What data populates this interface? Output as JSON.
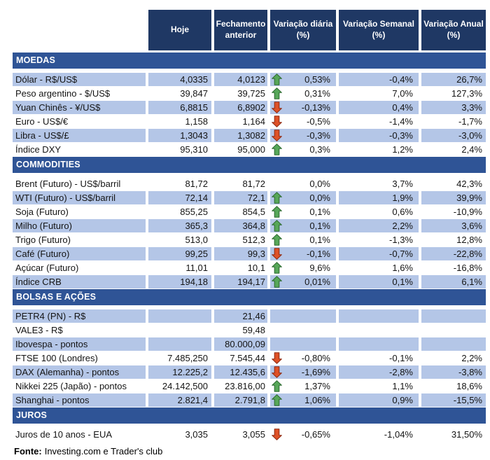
{
  "chart_data": {
    "type": "table",
    "columns": [
      "Hoje",
      "Fechamento anterior",
      "Variação diária (%)",
      "Variação Semanal (%)",
      "Variação Anual (%)"
    ],
    "sections": [
      {
        "title": "MOEDAS",
        "rows": [
          {
            "label": "Dólar - R$/US$",
            "hoje": "4,0335",
            "fechamento": "4,0123",
            "arrow": "up",
            "diaria": "0,53%",
            "semanal": "-0,4%",
            "anual": "26,7%"
          },
          {
            "label": "Peso argentino - $/US$",
            "hoje": "39,847",
            "fechamento": "39,725",
            "arrow": "up",
            "diaria": "0,31%",
            "semanal": "7,0%",
            "anual": "127,3%"
          },
          {
            "label": "Yuan Chinês - ¥/US$",
            "hoje": "6,8815",
            "fechamento": "6,8902",
            "arrow": "down",
            "diaria": "-0,13%",
            "semanal": "0,4%",
            "anual": "3,3%"
          },
          {
            "label": "Euro - US$/€",
            "hoje": "1,158",
            "fechamento": "1,164",
            "arrow": "down",
            "diaria": "-0,5%",
            "semanal": "-1,4%",
            "anual": "-1,7%"
          },
          {
            "label": "Libra - US$/£",
            "hoje": "1,3043",
            "fechamento": "1,3082",
            "arrow": "down",
            "diaria": "-0,3%",
            "semanal": "-0,3%",
            "anual": "-3,0%"
          },
          {
            "label": "Índice DXY",
            "hoje": "95,310",
            "fechamento": "95,000",
            "arrow": "up",
            "diaria": "0,3%",
            "semanal": "1,2%",
            "anual": "2,4%"
          }
        ]
      },
      {
        "title": "COMMODITIES",
        "rows": [
          {
            "label": "Brent (Futuro) - US$/barril",
            "hoje": "81,72",
            "fechamento": "81,72",
            "arrow": "",
            "diaria": "0,0%",
            "semanal": "3,7%",
            "anual": "42,3%"
          },
          {
            "label": "WTI (Futuro) - US$/barril",
            "hoje": "72,14",
            "fechamento": "72,1",
            "arrow": "up",
            "diaria": "0,0%",
            "semanal": "1,9%",
            "anual": "39,9%"
          },
          {
            "label": "Soja (Futuro)",
            "hoje": "855,25",
            "fechamento": "854,5",
            "arrow": "up",
            "diaria": "0,1%",
            "semanal": "0,6%",
            "anual": "-10,9%"
          },
          {
            "label": "Milho (Futuro)",
            "hoje": "365,3",
            "fechamento": "364,8",
            "arrow": "up",
            "diaria": "0,1%",
            "semanal": "2,2%",
            "anual": "3,6%"
          },
          {
            "label": "Trigo (Futuro)",
            "hoje": "513,0",
            "fechamento": "512,3",
            "arrow": "up",
            "diaria": "0,1%",
            "semanal": "-1,3%",
            "anual": "12,8%"
          },
          {
            "label": "Café (Futuro)",
            "hoje": "99,25",
            "fechamento": "99,3",
            "arrow": "down",
            "diaria": "-0,1%",
            "semanal": "-0,7%",
            "anual": "-22,8%"
          },
          {
            "label": "Açúcar (Futuro)",
            "hoje": "11,01",
            "fechamento": "10,1",
            "arrow": "up",
            "diaria": "9,6%",
            "semanal": "1,6%",
            "anual": "-16,8%"
          },
          {
            "label": "Índice CRB",
            "hoje": "194,18",
            "fechamento": "194,17",
            "arrow": "up",
            "diaria": "0,01%",
            "semanal": "0,1%",
            "anual": "6,1%"
          }
        ]
      },
      {
        "title": "BOLSAS E AÇÕES",
        "rows": [
          {
            "label": "PETR4 (PN) - R$",
            "hoje": "",
            "fechamento": "21,46",
            "arrow": "",
            "diaria": "",
            "semanal": "",
            "anual": ""
          },
          {
            "label": "VALE3 - R$",
            "hoje": "",
            "fechamento": "59,48",
            "arrow": "",
            "diaria": "",
            "semanal": "",
            "anual": ""
          },
          {
            "label": "Ibovespa - pontos",
            "hoje": "",
            "fechamento": "80.000,09",
            "arrow": "",
            "diaria": "",
            "semanal": "",
            "anual": ""
          },
          {
            "label": "FTSE 100 (Londres)",
            "hoje": "7.485,250",
            "fechamento": "7.545,44",
            "arrow": "down",
            "diaria": "-0,80%",
            "semanal": "-0,1%",
            "anual": "2,2%"
          },
          {
            "label": "DAX (Alemanha) - pontos",
            "hoje": "12.225,2",
            "fechamento": "12.435,6",
            "arrow": "down",
            "diaria": "-1,69%",
            "semanal": "-2,8%",
            "anual": "-3,8%"
          },
          {
            "label": "Nikkei 225 (Japão) - pontos",
            "hoje": "24.142,500",
            "fechamento": "23.816,00",
            "arrow": "up",
            "diaria": "1,37%",
            "semanal": "1,1%",
            "anual": "18,6%"
          },
          {
            "label": "Shanghai - pontos",
            "hoje": "2.821,4",
            "fechamento": "2.791,8",
            "arrow": "up",
            "diaria": "1,06%",
            "semanal": "0,9%",
            "anual": "-15,5%"
          }
        ]
      },
      {
        "title": "JUROS",
        "rows": [
          {
            "label": "Juros de 10 anos - EUA",
            "hoje": "3,035",
            "fechamento": "3,055",
            "arrow": "down",
            "diaria": "-0,65%",
            "semanal": "-1,04%",
            "anual": "31,50%"
          }
        ]
      }
    ]
  },
  "footer": {
    "fonte_label": "Fonte:",
    "fonte_text": "Investing.com e Trader's club"
  },
  "colors": {
    "header_bg": "#1F3864",
    "section_bg": "#2F5496",
    "row_shaded": "#B4C6E7",
    "up_arrow_fill": "#57A759",
    "up_arrow_border": "#2E6B31",
    "down_arrow_fill": "#DE5127",
    "down_arrow_border": "#8E2A12"
  }
}
